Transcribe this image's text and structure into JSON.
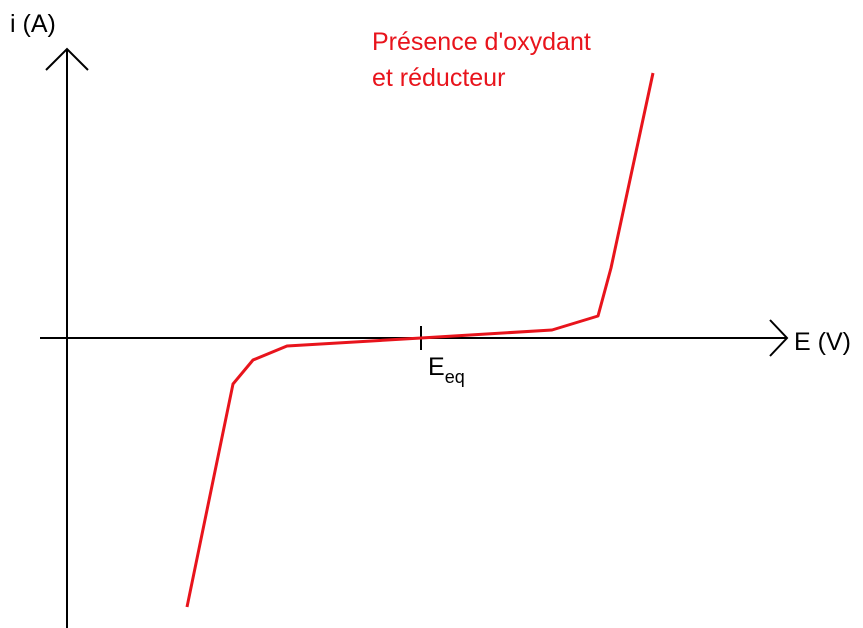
{
  "axes": {
    "y_label": "i (A)",
    "x_label": "E (V)"
  },
  "curve": {
    "label_lines": [
      "Présence d'oxydant",
      "et réducteur"
    ]
  },
  "marker": {
    "label": "E",
    "subscript": "eq"
  }
}
